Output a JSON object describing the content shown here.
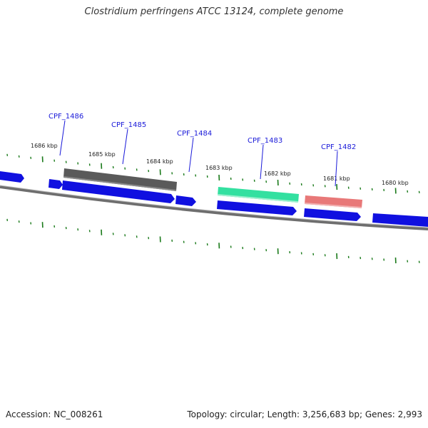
{
  "title": "Clostridium perfringens ATCC 13124, complete genome",
  "footer": {
    "accession": "Accession: NC_008261",
    "summary": "Topology: circular; Length: 3,256,683 bp; Genes: 2,993"
  },
  "colors": {
    "backbone": "#7a7a7a",
    "cds": "#1010e0",
    "ticks": "#1a7a1a",
    "callout": "#1a1ad9",
    "highlight_grey": "#555555",
    "highlight_green": "#33e0a0",
    "highlight_red": "#e87878"
  },
  "kbp_markers": [
    "1686 kbp",
    "1685 kbp",
    "1684 kbp",
    "1683 kbp",
    "1682 kbp",
    "1681 kbp",
    "1680 kbp"
  ],
  "callouts": [
    {
      "label": "CPF_1486",
      "color_name": "cds"
    },
    {
      "label": "CPF_1485",
      "color_name": "highlight_grey"
    },
    {
      "label": "CPF_1484",
      "color_name": "cds"
    },
    {
      "label": "CPF_1483",
      "color_name": "highlight_green"
    },
    {
      "label": "CPF_1482",
      "color_name": "highlight_red"
    }
  ]
}
